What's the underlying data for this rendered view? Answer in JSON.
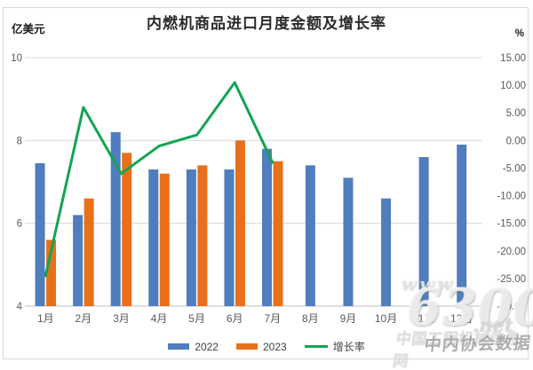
{
  "chart": {
    "title": "内燃机商品进口月度金额及增长率",
    "left_axis_unit": "亿美元",
    "right_axis_unit": "%"
  },
  "chart_data": {
    "type": "bar",
    "subtype": "grouped bars with growth-rate line on secondary axis",
    "title": "内燃机商品进口月度金额及增长率",
    "categories": [
      "1月",
      "2月",
      "3月",
      "4月",
      "5月",
      "6月",
      "7月",
      "8月",
      "9月",
      "10月",
      "11月",
      "12月"
    ],
    "series": [
      {
        "name": "2022",
        "type": "bar",
        "color": "#4f7dbd",
        "values": [
          7.45,
          6.2,
          8.2,
          7.3,
          7.3,
          7.3,
          7.8,
          7.4,
          7.1,
          6.6,
          7.6,
          7.9
        ]
      },
      {
        "name": "2023",
        "type": "bar",
        "color": "#e8701a",
        "values": [
          5.6,
          6.6,
          7.7,
          7.2,
          7.4,
          8.0,
          7.5,
          null,
          null,
          null,
          null,
          null
        ]
      },
      {
        "name": "增长率",
        "type": "line",
        "color": "#12a452",
        "axis": "right",
        "values": [
          -24.5,
          6.0,
          -6.0,
          -1.0,
          1.0,
          10.5,
          -4.0,
          null,
          null,
          null,
          null,
          null
        ]
      }
    ],
    "left_axis": {
      "unit": "亿美元",
      "min": 4,
      "max": 10,
      "ticks": [
        "10",
        "8",
        "6",
        "4"
      ],
      "tick_values": [
        10,
        8,
        6,
        4
      ]
    },
    "right_axis": {
      "unit": "%",
      "min": -30,
      "max": 15,
      "ticks": [
        "15.00",
        "10.00",
        "5.00",
        "0.00",
        "-5.00",
        "-10.00",
        "-15.00",
        "-20.00",
        "-25.00",
        "-30.00"
      ]
    },
    "grid": true,
    "legend_position": "bottom"
  },
  "legend": {
    "items": [
      {
        "label": "2022"
      },
      {
        "label": "2023"
      },
      {
        "label": "增长率"
      }
    ]
  },
  "watermark": {
    "www": "www.",
    "big": "6300",
    "net": ".net",
    "site_name": "中国工程机械信息网",
    "assoc_text": "中内协会数据"
  },
  "colors": {
    "bar_2022": "#4f7dbd",
    "bar_2023": "#e8701a",
    "growth_line": "#12a452",
    "gridline": "#d9d9d9",
    "axis_line": "#bfbfbf",
    "tick_text": "#595959",
    "title_text": "#2b2b2b"
  }
}
